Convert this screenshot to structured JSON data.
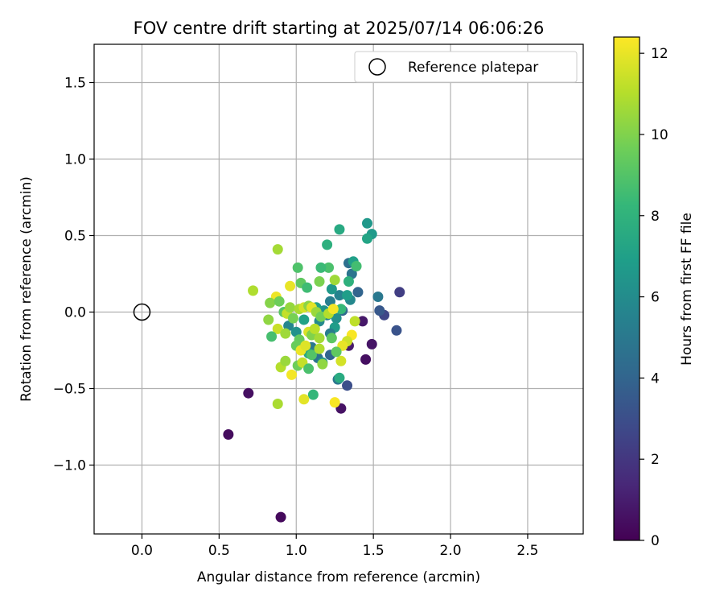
{
  "chart_data": {
    "type": "scatter",
    "title": "FOV centre drift starting at 2025/07/14 06:06:26",
    "xlabel": "Angular distance from reference (arcmin)",
    "ylabel": "Rotation from reference (arcmin)",
    "xlim": [
      -0.31,
      2.86
    ],
    "ylim": [
      -1.45,
      1.75
    ],
    "xticks": [
      0.0,
      0.5,
      1.0,
      1.5,
      2.0,
      2.5
    ],
    "xtick_labels": [
      "0.0",
      "0.5",
      "1.0",
      "1.5",
      "2.0",
      "2.5"
    ],
    "yticks": [
      -1.0,
      -0.5,
      0.0,
      0.5,
      1.0,
      1.5
    ],
    "ytick_labels": [
      "−1.0",
      "−0.5",
      "0.0",
      "0.5",
      "1.0",
      "1.5"
    ],
    "grid": true,
    "legend": {
      "placement": "top-right",
      "entries": [
        {
          "label": "Reference platepar",
          "marker": "open-circle"
        }
      ]
    },
    "reference_point": {
      "x": 0.0,
      "y": 0.0
    },
    "colorbar": {
      "label": "Hours from first FF file",
      "colormap": "viridis",
      "range": [
        0,
        12.4
      ],
      "ticks": [
        0,
        2,
        4,
        6,
        8,
        10,
        12
      ],
      "tick_labels": [
        "0",
        "2",
        "4",
        "6",
        "8",
        "10",
        "12"
      ],
      "colors": [
        "#440154",
        "#482878",
        "#3e4989",
        "#31688e",
        "#26828e",
        "#1f9e89",
        "#35b779",
        "#6ece58",
        "#b5de2b",
        "#fde725"
      ]
    },
    "points": [
      {
        "x": 0.9,
        "y": -1.34,
        "t": 0.3
      },
      {
        "x": 0.56,
        "y": -0.8,
        "t": 0.4
      },
      {
        "x": 0.69,
        "y": -0.53,
        "t": 0.5
      },
      {
        "x": 1.29,
        "y": -0.63,
        "t": 0.6
      },
      {
        "x": 1.45,
        "y": -0.31,
        "t": 0.5
      },
      {
        "x": 1.49,
        "y": -0.21,
        "t": 0.7
      },
      {
        "x": 1.34,
        "y": -0.22,
        "t": 0.9
      },
      {
        "x": 1.43,
        "y": -0.06,
        "t": 0.8
      },
      {
        "x": 1.67,
        "y": 0.13,
        "t": 2.3
      },
      {
        "x": 1.65,
        "y": -0.12,
        "t": 3.2
      },
      {
        "x": 1.57,
        "y": -0.02,
        "t": 2.6
      },
      {
        "x": 1.54,
        "y": 0.01,
        "t": 3.4
      },
      {
        "x": 1.33,
        "y": -0.48,
        "t": 3.0
      },
      {
        "x": 1.53,
        "y": 0.1,
        "t": 5.0
      },
      {
        "x": 1.4,
        "y": 0.13,
        "t": 4.0
      },
      {
        "x": 1.34,
        "y": 0.32,
        "t": 4.5
      },
      {
        "x": 1.36,
        "y": 0.25,
        "t": 4.8
      },
      {
        "x": 1.28,
        "y": 0.11,
        "t": 5.5
      },
      {
        "x": 1.22,
        "y": 0.07,
        "t": 5.3
      },
      {
        "x": 1.35,
        "y": 0.08,
        "t": 5.8
      },
      {
        "x": 1.3,
        "y": 0.01,
        "t": 4.2
      },
      {
        "x": 1.26,
        "y": -0.04,
        "t": 6.2
      },
      {
        "x": 1.2,
        "y": -0.02,
        "t": 5.6
      },
      {
        "x": 1.25,
        "y": -0.1,
        "t": 6.8
      },
      {
        "x": 1.15,
        "y": -0.06,
        "t": 5.9
      },
      {
        "x": 1.18,
        "y": 0.01,
        "t": 6.4
      },
      {
        "x": 1.13,
        "y": 0.03,
        "t": 7.0
      },
      {
        "x": 1.1,
        "y": -0.23,
        "t": 5.0
      },
      {
        "x": 1.14,
        "y": -0.3,
        "t": 4.7
      },
      {
        "x": 1.22,
        "y": -0.28,
        "t": 4.0
      },
      {
        "x": 1.17,
        "y": -0.33,
        "t": 6.5
      },
      {
        "x": 1.22,
        "y": -0.14,
        "t": 5.2
      },
      {
        "x": 1.08,
        "y": -0.27,
        "t": 7.4
      },
      {
        "x": 1.27,
        "y": -0.44,
        "t": 4.9
      },
      {
        "x": 1.28,
        "y": -0.43,
        "t": 7.6
      },
      {
        "x": 0.95,
        "y": -0.09,
        "t": 5.7
      },
      {
        "x": 1.0,
        "y": -0.13,
        "t": 6.3
      },
      {
        "x": 1.05,
        "y": -0.05,
        "t": 7.1
      },
      {
        "x": 1.2,
        "y": 0.44,
        "t": 7.8
      },
      {
        "x": 1.28,
        "y": 0.54,
        "t": 7.5
      },
      {
        "x": 1.46,
        "y": 0.58,
        "t": 6.6
      },
      {
        "x": 1.49,
        "y": 0.51,
        "t": 6.7
      },
      {
        "x": 1.46,
        "y": 0.48,
        "t": 7.2
      },
      {
        "x": 1.37,
        "y": 0.33,
        "t": 7.0
      },
      {
        "x": 1.39,
        "y": 0.3,
        "t": 8.6
      },
      {
        "x": 1.34,
        "y": 0.2,
        "t": 7.9
      },
      {
        "x": 1.33,
        "y": 0.11,
        "t": 6.9
      },
      {
        "x": 1.29,
        "y": 0.02,
        "t": 8.3
      },
      {
        "x": 1.21,
        "y": 0.29,
        "t": 8.8
      },
      {
        "x": 1.16,
        "y": 0.29,
        "t": 8.4
      },
      {
        "x": 1.15,
        "y": 0.2,
        "t": 9.9
      },
      {
        "x": 1.23,
        "y": 0.15,
        "t": 6.6
      },
      {
        "x": 1.25,
        "y": 0.21,
        "t": 10.6
      },
      {
        "x": 1.01,
        "y": 0.29,
        "t": 8.9
      },
      {
        "x": 1.03,
        "y": 0.19,
        "t": 9.3
      },
      {
        "x": 1.07,
        "y": 0.16,
        "t": 8.5
      },
      {
        "x": 0.96,
        "y": 0.17,
        "t": 12.0
      },
      {
        "x": 0.88,
        "y": 0.41,
        "t": 10.7
      },
      {
        "x": 0.72,
        "y": 0.14,
        "t": 10.9
      },
      {
        "x": 0.87,
        "y": 0.1,
        "t": 12.1
      },
      {
        "x": 0.83,
        "y": 0.06,
        "t": 10.1
      },
      {
        "x": 0.89,
        "y": 0.07,
        "t": 9.6
      },
      {
        "x": 0.92,
        "y": 0.0,
        "t": 9.1
      },
      {
        "x": 0.94,
        "y": -0.01,
        "t": 11.3
      },
      {
        "x": 0.96,
        "y": 0.03,
        "t": 10.4
      },
      {
        "x": 1.02,
        "y": 0.02,
        "t": 10.8
      },
      {
        "x": 1.05,
        "y": 0.03,
        "t": 11.6
      },
      {
        "x": 1.08,
        "y": 0.04,
        "t": 10.2
      },
      {
        "x": 1.1,
        "y": 0.03,
        "t": 11.9
      },
      {
        "x": 1.13,
        "y": 0.0,
        "t": 10.5
      },
      {
        "x": 1.16,
        "y": -0.03,
        "t": 9.7
      },
      {
        "x": 1.21,
        "y": -0.01,
        "t": 11.0
      },
      {
        "x": 1.24,
        "y": 0.02,
        "t": 12.2
      },
      {
        "x": 0.82,
        "y": -0.05,
        "t": 10.3
      },
      {
        "x": 0.88,
        "y": -0.11,
        "t": 11.4
      },
      {
        "x": 0.84,
        "y": -0.16,
        "t": 8.7
      },
      {
        "x": 0.93,
        "y": -0.14,
        "t": 10.6
      },
      {
        "x": 0.98,
        "y": -0.04,
        "t": 9.8
      },
      {
        "x": 1.02,
        "y": -0.18,
        "t": 9.4
      },
      {
        "x": 1.08,
        "y": -0.13,
        "t": 11.7
      },
      {
        "x": 1.1,
        "y": -0.15,
        "t": 10.0
      },
      {
        "x": 1.12,
        "y": -0.11,
        "t": 11.1
      },
      {
        "x": 1.15,
        "y": -0.17,
        "t": 10.7
      },
      {
        "x": 1.23,
        "y": -0.17,
        "t": 9.2
      },
      {
        "x": 1.36,
        "y": -0.15,
        "t": 12.3
      },
      {
        "x": 1.33,
        "y": -0.19,
        "t": 11.5
      },
      {
        "x": 1.38,
        "y": -0.06,
        "t": 11.2
      },
      {
        "x": 1.3,
        "y": -0.22,
        "t": 12.0
      },
      {
        "x": 1.0,
        "y": -0.22,
        "t": 9.5
      },
      {
        "x": 1.03,
        "y": -0.25,
        "t": 12.1
      },
      {
        "x": 1.06,
        "y": -0.22,
        "t": 11.8
      },
      {
        "x": 1.1,
        "y": -0.28,
        "t": 9.0
      },
      {
        "x": 1.15,
        "y": -0.24,
        "t": 10.9
      },
      {
        "x": 1.17,
        "y": -0.34,
        "t": 10.3
      },
      {
        "x": 1.29,
        "y": -0.32,
        "t": 11.6
      },
      {
        "x": 1.26,
        "y": -0.26,
        "t": 9.3
      },
      {
        "x": 0.9,
        "y": -0.36,
        "t": 11.0
      },
      {
        "x": 0.93,
        "y": -0.32,
        "t": 10.5
      },
      {
        "x": 0.97,
        "y": -0.41,
        "t": 12.2
      },
      {
        "x": 1.01,
        "y": -0.35,
        "t": 9.6
      },
      {
        "x": 1.04,
        "y": -0.33,
        "t": 11.3
      },
      {
        "x": 1.08,
        "y": -0.37,
        "t": 8.8
      },
      {
        "x": 1.11,
        "y": -0.54,
        "t": 8.2
      },
      {
        "x": 1.05,
        "y": -0.57,
        "t": 11.9
      },
      {
        "x": 0.88,
        "y": -0.6,
        "t": 10.8
      },
      {
        "x": 1.25,
        "y": -0.59,
        "t": 12.3
      }
    ]
  }
}
